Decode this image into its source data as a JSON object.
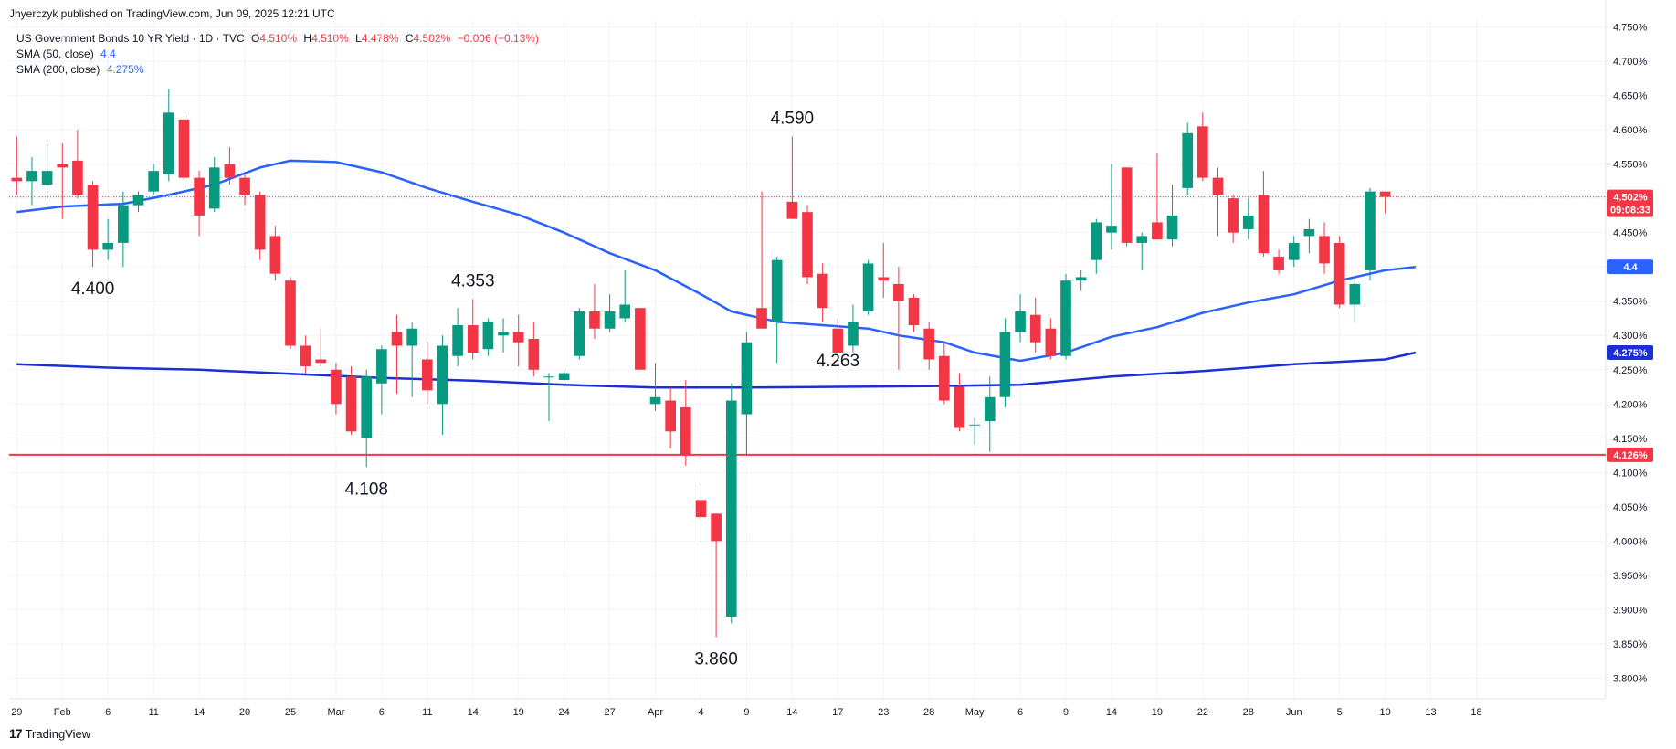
{
  "header": {
    "published": "Jhyerczyk published on TradingView.com, Jun 09, 2025 12:21 UTC",
    "symbol": "US Government Bonds 10 YR Yield · 1D · TVC",
    "o_label": "O",
    "o_value": "4.510%",
    "h_label": "H",
    "h_value": "4.510%",
    "l_label": "L",
    "l_value": "4.478%",
    "c_label": "C",
    "c_value": "4.502%",
    "change": "−0.006 (−0.13%)",
    "sma50_label": "SMA (50, close)",
    "sma50_value": "4.4",
    "sma200_label": "SMA (200, close)",
    "sma200_value": "4.275%"
  },
  "brand": {
    "logo": "17",
    "name": "TradingView"
  },
  "colors": {
    "up": "#089981",
    "down": "#f23645",
    "sma50": "#2962ff",
    "sma200": "#1c2fd6",
    "support": "#f23645",
    "grid": "#f0f3fa"
  },
  "chart_data": {
    "type": "candlestick",
    "y_range": [
      3.77,
      4.76
    ],
    "y_ticks": [
      "4.750%",
      "4.700%",
      "4.650%",
      "4.600%",
      "4.550%",
      "4.500%",
      "4.450%",
      "4.400%",
      "4.350%",
      "4.300%",
      "4.250%",
      "4.200%",
      "4.150%",
      "4.100%",
      "4.050%",
      "4.000%",
      "3.950%",
      "3.900%",
      "3.850%",
      "3.800%"
    ],
    "x_range": [
      0,
      104
    ],
    "x_ticks": [
      {
        "x": 0,
        "label": "29"
      },
      {
        "x": 3,
        "label": "Feb"
      },
      {
        "x": 6,
        "label": "6"
      },
      {
        "x": 9,
        "label": "11"
      },
      {
        "x": 12,
        "label": "14"
      },
      {
        "x": 15,
        "label": "20"
      },
      {
        "x": 18,
        "label": "25"
      },
      {
        "x": 21,
        "label": "Mar"
      },
      {
        "x": 24,
        "label": "6"
      },
      {
        "x": 27,
        "label": "11"
      },
      {
        "x": 30,
        "label": "14"
      },
      {
        "x": 33,
        "label": "19"
      },
      {
        "x": 36,
        "label": "24"
      },
      {
        "x": 39,
        "label": "27"
      },
      {
        "x": 42,
        "label": "Apr"
      },
      {
        "x": 45,
        "label": "4"
      },
      {
        "x": 48,
        "label": "9"
      },
      {
        "x": 51,
        "label": "14"
      },
      {
        "x": 54,
        "label": "17"
      },
      {
        "x": 57,
        "label": "23"
      },
      {
        "x": 60,
        "label": "28"
      },
      {
        "x": 63,
        "label": "May"
      },
      {
        "x": 66,
        "label": "6"
      },
      {
        "x": 69,
        "label": "9"
      },
      {
        "x": 72,
        "label": "14"
      },
      {
        "x": 75,
        "label": "19"
      },
      {
        "x": 78,
        "label": "22"
      },
      {
        "x": 81,
        "label": "28"
      },
      {
        "x": 84,
        "label": "Jun"
      },
      {
        "x": 87,
        "label": "5"
      },
      {
        "x": 90,
        "label": "10"
      },
      {
        "x": 93,
        "label": "13"
      },
      {
        "x": 96,
        "label": "18"
      }
    ],
    "candles": [
      {
        "x": 0,
        "o": 4.53,
        "h": 4.59,
        "l": 4.505,
        "c": 4.525
      },
      {
        "x": 1,
        "o": 4.525,
        "h": 4.56,
        "l": 4.49,
        "c": 4.54
      },
      {
        "x": 2,
        "o": 4.52,
        "h": 4.585,
        "l": 4.5,
        "c": 4.54
      },
      {
        "x": 3,
        "o": 4.55,
        "h": 4.58,
        "l": 4.47,
        "c": 4.545
      },
      {
        "x": 4,
        "o": 4.555,
        "h": 4.6,
        "l": 4.5,
        "c": 4.505
      },
      {
        "x": 5,
        "o": 4.52,
        "h": 4.525,
        "l": 4.4,
        "c": 4.425
      },
      {
        "x": 6,
        "o": 4.425,
        "h": 4.47,
        "l": 4.41,
        "c": 4.435
      },
      {
        "x": 7,
        "o": 4.435,
        "h": 4.51,
        "l": 4.4,
        "c": 4.49
      },
      {
        "x": 8,
        "o": 4.49,
        "h": 4.51,
        "l": 4.48,
        "c": 4.505
      },
      {
        "x": 9,
        "o": 4.51,
        "h": 4.55,
        "l": 4.505,
        "c": 4.54
      },
      {
        "x": 10,
        "o": 4.535,
        "h": 4.66,
        "l": 4.525,
        "c": 4.625
      },
      {
        "x": 11,
        "o": 4.615,
        "h": 4.62,
        "l": 4.52,
        "c": 4.53
      },
      {
        "x": 12,
        "o": 4.53,
        "h": 4.54,
        "l": 4.445,
        "c": 4.475
      },
      {
        "x": 13,
        "o": 4.485,
        "h": 4.56,
        "l": 4.48,
        "c": 4.545
      },
      {
        "x": 14,
        "o": 4.55,
        "h": 4.575,
        "l": 4.52,
        "c": 4.53
      },
      {
        "x": 15,
        "o": 4.53,
        "h": 4.535,
        "l": 4.49,
        "c": 4.505
      },
      {
        "x": 16,
        "o": 4.505,
        "h": 4.51,
        "l": 4.41,
        "c": 4.425
      },
      {
        "x": 17,
        "o": 4.445,
        "h": 4.46,
        "l": 4.38,
        "c": 4.39
      },
      {
        "x": 18,
        "o": 4.38,
        "h": 4.385,
        "l": 4.28,
        "c": 4.285
      },
      {
        "x": 19,
        "o": 4.285,
        "h": 4.3,
        "l": 4.245,
        "c": 4.255
      },
      {
        "x": 20,
        "o": 4.265,
        "h": 4.31,
        "l": 4.255,
        "c": 4.26
      },
      {
        "x": 21,
        "o": 4.25,
        "h": 4.26,
        "l": 4.185,
        "c": 4.2
      },
      {
        "x": 22,
        "o": 4.24,
        "h": 4.255,
        "l": 4.155,
        "c": 4.16
      },
      {
        "x": 23,
        "o": 4.15,
        "h": 4.25,
        "l": 4.108,
        "c": 4.24
      },
      {
        "x": 24,
        "o": 4.23,
        "h": 4.285,
        "l": 4.185,
        "c": 4.28
      },
      {
        "x": 25,
        "o": 4.305,
        "h": 4.33,
        "l": 4.215,
        "c": 4.285
      },
      {
        "x": 26,
        "o": 4.285,
        "h": 4.32,
        "l": 4.21,
        "c": 4.31
      },
      {
        "x": 27,
        "o": 4.265,
        "h": 4.29,
        "l": 4.2,
        "c": 4.22
      },
      {
        "x": 28,
        "o": 4.2,
        "h": 4.3,
        "l": 4.155,
        "c": 4.285
      },
      {
        "x": 29,
        "o": 4.27,
        "h": 4.34,
        "l": 4.255,
        "c": 4.315
      },
      {
        "x": 30,
        "o": 4.315,
        "h": 4.353,
        "l": 4.265,
        "c": 4.275
      },
      {
        "x": 31,
        "o": 4.28,
        "h": 4.325,
        "l": 4.27,
        "c": 4.32
      },
      {
        "x": 32,
        "o": 4.3,
        "h": 4.325,
        "l": 4.275,
        "c": 4.305
      },
      {
        "x": 33,
        "o": 4.305,
        "h": 4.33,
        "l": 4.255,
        "c": 4.29
      },
      {
        "x": 34,
        "o": 4.295,
        "h": 4.32,
        "l": 4.24,
        "c": 4.25
      },
      {
        "x": 35,
        "o": 4.24,
        "h": 4.245,
        "l": 4.175,
        "c": 4.24
      },
      {
        "x": 36,
        "o": 4.235,
        "h": 4.25,
        "l": 4.225,
        "c": 4.245
      },
      {
        "x": 37,
        "o": 4.27,
        "h": 4.34,
        "l": 4.265,
        "c": 4.335
      },
      {
        "x": 38,
        "o": 4.335,
        "h": 4.375,
        "l": 4.295,
        "c": 4.31
      },
      {
        "x": 39,
        "o": 4.31,
        "h": 4.36,
        "l": 4.305,
        "c": 4.335
      },
      {
        "x": 40,
        "o": 4.325,
        "h": 4.395,
        "l": 4.32,
        "c": 4.345
      },
      {
        "x": 41,
        "o": 4.34,
        "h": 4.34,
        "l": 4.25,
        "c": 4.25
      },
      {
        "x": 42,
        "o": 4.2,
        "h": 4.26,
        "l": 4.19,
        "c": 4.21
      },
      {
        "x": 43,
        "o": 4.205,
        "h": 4.225,
        "l": 4.135,
        "c": 4.16
      },
      {
        "x": 44,
        "o": 4.195,
        "h": 4.235,
        "l": 4.11,
        "c": 4.125
      },
      {
        "x": 45,
        "o": 4.06,
        "h": 4.085,
        "l": 4.0,
        "c": 4.035
      },
      {
        "x": 46,
        "o": 4.04,
        "h": 4.04,
        "l": 3.86,
        "c": 4.0
      },
      {
        "x": 47,
        "o": 3.89,
        "h": 4.23,
        "l": 3.88,
        "c": 4.205
      },
      {
        "x": 48,
        "o": 4.185,
        "h": 4.305,
        "l": 4.125,
        "c": 4.29
      },
      {
        "x": 49,
        "o": 4.34,
        "h": 4.51,
        "l": 4.315,
        "c": 4.31
      },
      {
        "x": 50,
        "o": 4.32,
        "h": 4.415,
        "l": 4.26,
        "c": 4.41
      },
      {
        "x": 51,
        "o": 4.495,
        "h": 4.59,
        "l": 4.47,
        "c": 4.47
      },
      {
        "x": 52,
        "o": 4.48,
        "h": 4.49,
        "l": 4.375,
        "c": 4.385
      },
      {
        "x": 53,
        "o": 4.39,
        "h": 4.405,
        "l": 4.32,
        "c": 4.34
      },
      {
        "x": 54,
        "o": 4.31,
        "h": 4.325,
        "l": 4.265,
        "c": 4.275
      },
      {
        "x": 55,
        "o": 4.285,
        "h": 4.345,
        "l": 4.275,
        "c": 4.32
      },
      {
        "x": 56,
        "o": 4.335,
        "h": 4.41,
        "l": 4.33,
        "c": 4.405
      },
      {
        "x": 57,
        "o": 4.385,
        "h": 4.435,
        "l": 4.355,
        "c": 4.38
      },
      {
        "x": 58,
        "o": 4.375,
        "h": 4.4,
        "l": 4.25,
        "c": 4.35
      },
      {
        "x": 59,
        "o": 4.355,
        "h": 4.36,
        "l": 4.305,
        "c": 4.315
      },
      {
        "x": 60,
        "o": 4.31,
        "h": 4.32,
        "l": 4.25,
        "c": 4.265
      },
      {
        "x": 61,
        "o": 4.27,
        "h": 4.29,
        "l": 4.2,
        "c": 4.205
      },
      {
        "x": 62,
        "o": 4.225,
        "h": 4.245,
        "l": 4.16,
        "c": 4.165
      },
      {
        "x": 63,
        "o": 4.17,
        "h": 4.18,
        "l": 4.14,
        "c": 4.17
      },
      {
        "x": 64,
        "o": 4.175,
        "h": 4.24,
        "l": 4.13,
        "c": 4.21
      },
      {
        "x": 65,
        "o": 4.21,
        "h": 4.325,
        "l": 4.195,
        "c": 4.305
      },
      {
        "x": 66,
        "o": 4.305,
        "h": 4.36,
        "l": 4.29,
        "c": 4.335
      },
      {
        "x": 67,
        "o": 4.33,
        "h": 4.355,
        "l": 4.275,
        "c": 4.29
      },
      {
        "x": 68,
        "o": 4.31,
        "h": 4.325,
        "l": 4.265,
        "c": 4.27
      },
      {
        "x": 69,
        "o": 4.27,
        "h": 4.39,
        "l": 4.265,
        "c": 4.38
      },
      {
        "x": 70,
        "o": 4.38,
        "h": 4.395,
        "l": 4.365,
        "c": 4.385
      },
      {
        "x": 71,
        "o": 4.41,
        "h": 4.47,
        "l": 4.39,
        "c": 4.465
      },
      {
        "x": 72,
        "o": 4.45,
        "h": 4.55,
        "l": 4.425,
        "c": 4.46
      },
      {
        "x": 73,
        "o": 4.545,
        "h": 4.545,
        "l": 4.43,
        "c": 4.435
      },
      {
        "x": 74,
        "o": 4.435,
        "h": 4.45,
        "l": 4.395,
        "c": 4.445
      },
      {
        "x": 75,
        "o": 4.465,
        "h": 4.565,
        "l": 4.44,
        "c": 4.44
      },
      {
        "x": 76,
        "o": 4.44,
        "h": 4.52,
        "l": 4.43,
        "c": 4.475
      },
      {
        "x": 77,
        "o": 4.515,
        "h": 4.61,
        "l": 4.505,
        "c": 4.595
      },
      {
        "x": 78,
        "o": 4.605,
        "h": 4.625,
        "l": 4.525,
        "c": 4.53
      },
      {
        "x": 79,
        "o": 4.53,
        "h": 4.545,
        "l": 4.445,
        "c": 4.505
      },
      {
        "x": 80,
        "o": 4.5,
        "h": 4.505,
        "l": 4.435,
        "c": 4.45
      },
      {
        "x": 81,
        "o": 4.455,
        "h": 4.5,
        "l": 4.44,
        "c": 4.475
      },
      {
        "x": 82,
        "o": 4.505,
        "h": 4.54,
        "l": 4.415,
        "c": 4.42
      },
      {
        "x": 83,
        "o": 4.415,
        "h": 4.425,
        "l": 4.39,
        "c": 4.395
      },
      {
        "x": 84,
        "o": 4.41,
        "h": 4.445,
        "l": 4.4,
        "c": 4.435
      },
      {
        "x": 85,
        "o": 4.445,
        "h": 4.47,
        "l": 4.42,
        "c": 4.455
      },
      {
        "x": 86,
        "o": 4.445,
        "h": 4.465,
        "l": 4.39,
        "c": 4.405
      },
      {
        "x": 87,
        "o": 4.435,
        "h": 4.445,
        "l": 4.34,
        "c": 4.345
      },
      {
        "x": 88,
        "o": 4.345,
        "h": 4.38,
        "l": 4.32,
        "c": 4.375
      },
      {
        "x": 89,
        "o": 4.395,
        "h": 4.515,
        "l": 4.38,
        "c": 4.51
      },
      {
        "x": 90,
        "o": 4.51,
        "h": 4.51,
        "l": 4.478,
        "c": 4.502
      }
    ],
    "sma50": [
      [
        0,
        4.48
      ],
      [
        3,
        4.488
      ],
      [
        7,
        4.492
      ],
      [
        10,
        4.505
      ],
      [
        13,
        4.52
      ],
      [
        16,
        4.545
      ],
      [
        18,
        4.555
      ],
      [
        21,
        4.553
      ],
      [
        24,
        4.538
      ],
      [
        27,
        4.515
      ],
      [
        30,
        4.495
      ],
      [
        33,
        4.476
      ],
      [
        36,
        4.45
      ],
      [
        39,
        4.42
      ],
      [
        42,
        4.395
      ],
      [
        45,
        4.36
      ],
      [
        47,
        4.335
      ],
      [
        50,
        4.32
      ],
      [
        53,
        4.315
      ],
      [
        56,
        4.31
      ],
      [
        58,
        4.3
      ],
      [
        61,
        4.29
      ],
      [
        63,
        4.275
      ],
      [
        66,
        4.263
      ],
      [
        69,
        4.275
      ],
      [
        72,
        4.298
      ],
      [
        75,
        4.312
      ],
      [
        78,
        4.333
      ],
      [
        81,
        4.348
      ],
      [
        84,
        4.36
      ],
      [
        87,
        4.38
      ],
      [
        90,
        4.395
      ],
      [
        92,
        4.4
      ]
    ],
    "sma200": [
      [
        0,
        4.258
      ],
      [
        6,
        4.253
      ],
      [
        12,
        4.25
      ],
      [
        18,
        4.244
      ],
      [
        24,
        4.238
      ],
      [
        30,
        4.234
      ],
      [
        36,
        4.228
      ],
      [
        42,
        4.224
      ],
      [
        48,
        4.224
      ],
      [
        54,
        4.225
      ],
      [
        60,
        4.226
      ],
      [
        66,
        4.228
      ],
      [
        72,
        4.24
      ],
      [
        78,
        4.248
      ],
      [
        84,
        4.258
      ],
      [
        90,
        4.265
      ],
      [
        92,
        4.275
      ]
    ],
    "support_level": 4.126,
    "current_price": 4.502,
    "annotations": [
      {
        "text": "4.400",
        "x": 5,
        "y": 4.4,
        "pos": "below"
      },
      {
        "text": "4.353",
        "x": 30,
        "y": 4.353,
        "pos": "above"
      },
      {
        "text": "4.108",
        "x": 23,
        "y": 4.108,
        "pos": "below"
      },
      {
        "text": "4.590",
        "x": 51,
        "y": 4.59,
        "pos": "above"
      },
      {
        "text": "4.263",
        "x": 54,
        "y": 4.263,
        "pos": "mid"
      },
      {
        "text": "3.860",
        "x": 46,
        "y": 3.86,
        "pos": "below"
      }
    ],
    "price_tags": [
      {
        "label": "4.502%",
        "sub": "09:08:33",
        "value": 4.502,
        "color": "#f23645"
      },
      {
        "label": "4.4",
        "value": 4.4,
        "color": "#2962ff"
      },
      {
        "label": "4.275%",
        "value": 4.275,
        "color": "#1c2fd6"
      },
      {
        "label": "4.126%",
        "value": 4.126,
        "color": "#f23645"
      }
    ]
  }
}
